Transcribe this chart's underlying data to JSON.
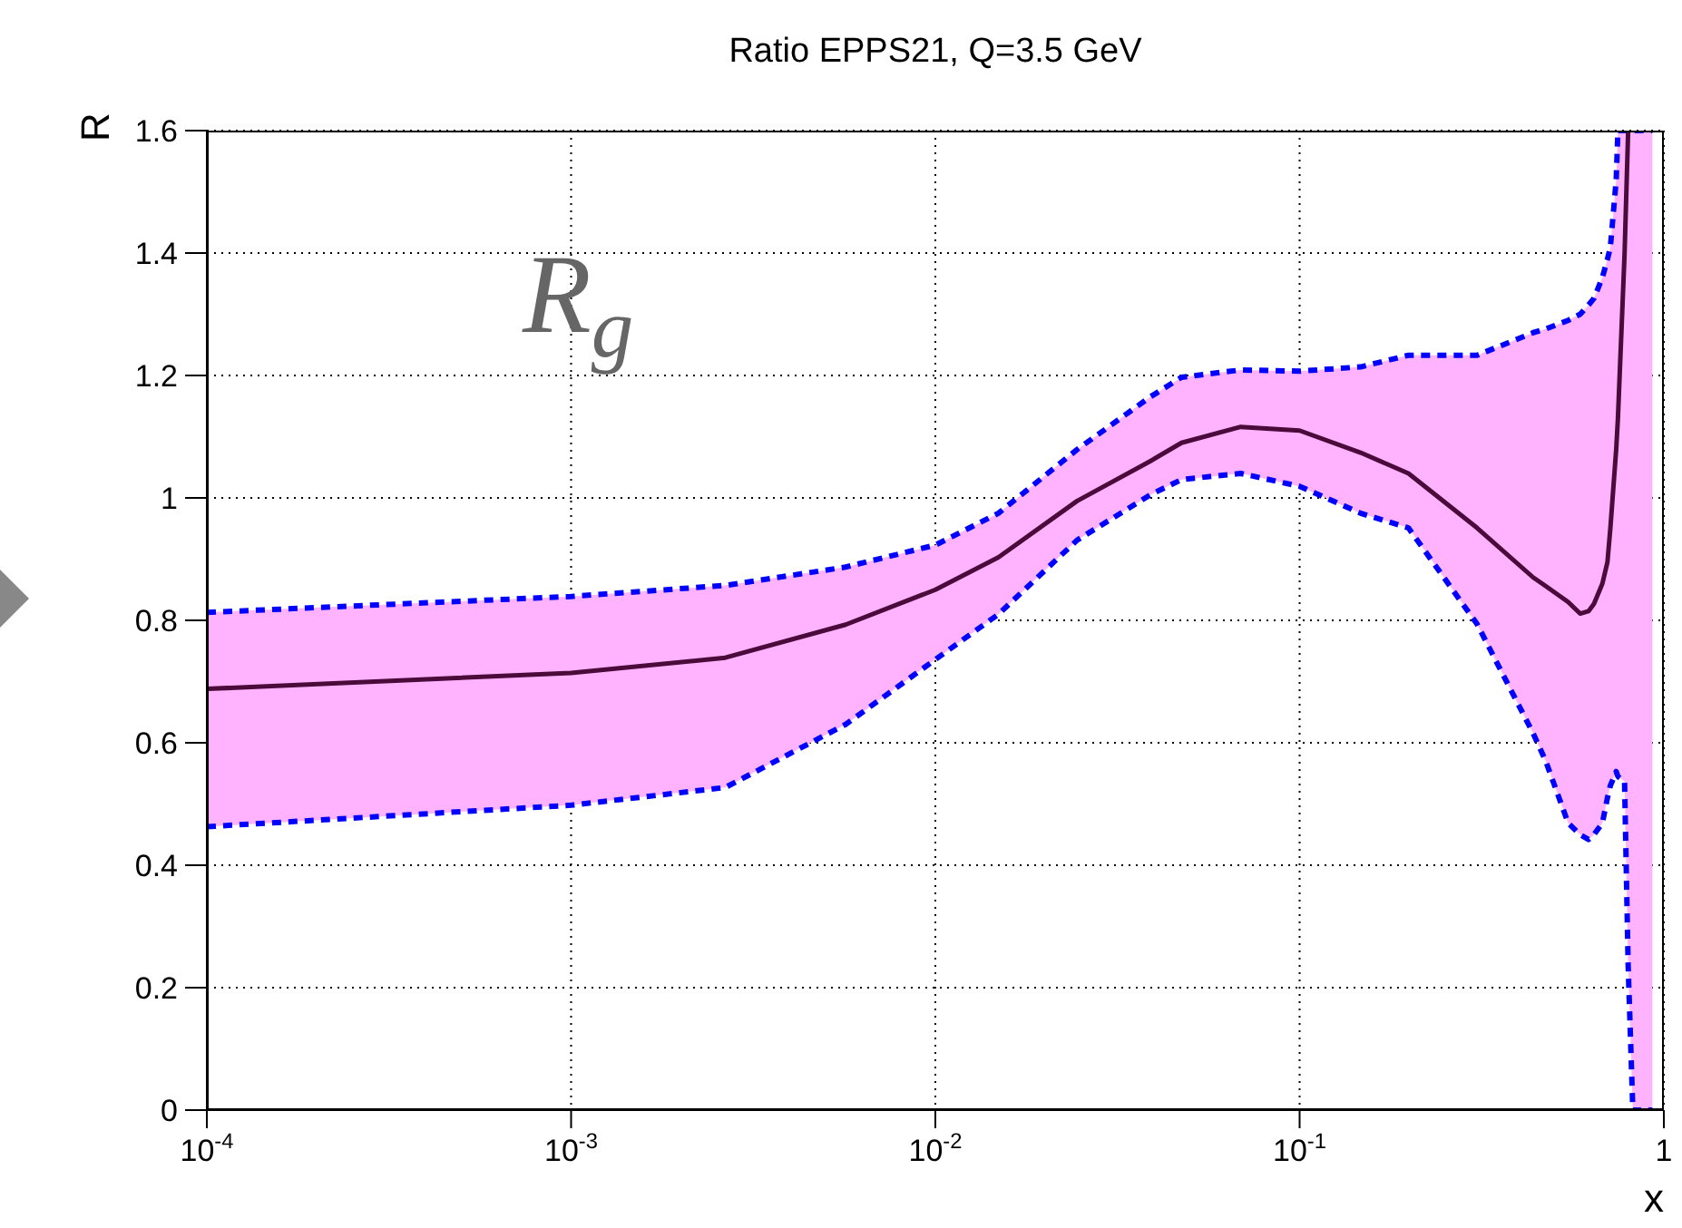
{
  "chart_data": {
    "type": "line",
    "title": "Ratio EPPS21,  Q=3.5 GeV",
    "xlabel": "x",
    "ylabel": "R",
    "log": "x",
    "grid": true,
    "annotations": [
      "R$_{g}$"
    ],
    "x": [
      0.0001,
      0.001,
      0.00265,
      0.00567,
      0.01,
      0.0149,
      0.0245,
      0.0389,
      0.0474,
      0.0689,
      0.1,
      0.147,
      0.199,
      0.307,
      0.438,
      0.474,
      0.546,
      0.589,
      0.621,
      0.643,
      0.678,
      0.7,
      0.713,
      0.74,
      0.748,
      0.78,
      0.798,
      0.822,
      0.93
    ],
    "xlim": [
      0.0001,
      1
    ],
    "xticks": [
      {
        "value": 0.0001,
        "label": "10$^{-4}$"
      },
      {
        "value": 0.001,
        "label": "10$^{-3}$"
      },
      {
        "value": 0.01,
        "label": "10$^{-2}$"
      },
      {
        "value": 0.1,
        "label": "10$^{-1}$"
      },
      1
    ],
    "ylim": [
      0,
      1.6
    ],
    "yticks": [
      0,
      0.2,
      0.4,
      0.6,
      0.8,
      1,
      1.2,
      1.4,
      1.6
    ],
    "series": [
      {
        "color": "#4a0a3a",
        "line_style": "solid",
        "values": [
          0.688,
          0.714,
          0.739,
          0.793,
          0.85,
          0.903,
          0.995,
          1.06,
          1.09,
          1.116,
          1.11,
          1.074,
          1.04,
          0.951,
          0.87,
          0.856,
          0.83,
          0.811,
          0.815,
          0.827,
          0.86,
          0.895,
          0.95,
          1.08,
          1.13,
          1.398,
          1.6,
          null,
          null
        ],
        "lower": [
          0.463,
          0.498,
          0.527,
          0.63,
          0.736,
          0.81,
          0.931,
          1.005,
          1.03,
          1.04,
          1.019,
          0.975,
          0.951,
          0.794,
          0.615,
          0.57,
          0.469,
          0.45,
          0.442,
          0.45,
          0.469,
          0.51,
          0.53,
          0.553,
          0.545,
          0.537,
          0.236,
          0,
          0
        ],
        "upper": [
          0.813,
          0.839,
          0.857,
          0.887,
          0.923,
          0.975,
          1.079,
          1.165,
          1.197,
          1.209,
          1.207,
          1.214,
          1.233,
          1.233,
          1.27,
          1.276,
          1.29,
          1.3,
          1.315,
          1.326,
          1.36,
          1.39,
          1.409,
          1.52,
          1.6,
          1.6,
          1.6,
          1.6,
          1.6
        ]
      },
      {
        "type": "line",
        "color": "#0000ff",
        "line_style": "dashed",
        "values": [
          0.813,
          0.839,
          0.857,
          0.887,
          0.923,
          0.975,
          1.079,
          1.165,
          1.197,
          1.209,
          1.207,
          1.214,
          1.233,
          1.233,
          1.27,
          1.276,
          1.29,
          1.3,
          1.315,
          1.326,
          1.36,
          1.39,
          1.409,
          1.52,
          1.6,
          1.6,
          1.6,
          1.6,
          1.6
        ]
      },
      {
        "type": "line",
        "color": "#0000ff",
        "line_style": "dashed",
        "values": [
          0.463,
          0.498,
          0.527,
          0.63,
          0.736,
          0.81,
          0.931,
          1.005,
          1.03,
          1.04,
          1.019,
          0.975,
          0.951,
          0.794,
          0.615,
          0.57,
          0.469,
          0.45,
          0.442,
          0.45,
          0.469,
          0.51,
          0.53,
          0.553,
          0.545,
          0.537,
          0.236,
          0,
          0
        ]
      }
    ]
  }
}
